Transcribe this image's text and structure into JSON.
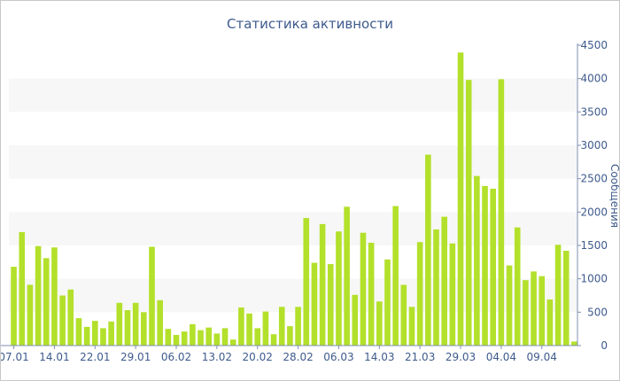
{
  "chart_data": {
    "type": "bar",
    "title": "Статистика активности",
    "ylabel": "Сообщения",
    "ylim": [
      0,
      4500
    ],
    "yticks": [
      0,
      500,
      1000,
      1500,
      2000,
      2500,
      3000,
      3500,
      4000,
      4500
    ],
    "y_axis_position": "right",
    "grid": "alternating horizontal bands",
    "bar_color": "#b3e02a",
    "xtick_labels": [
      "07.01",
      "14.01",
      "22.01",
      "29.01",
      "06.02",
      "13.02",
      "20.02",
      "28.02",
      "06.03",
      "14.03",
      "21.03",
      "29.03",
      "04.04",
      "09.04"
    ],
    "xtick_bar_index": [
      0,
      5,
      10,
      15,
      20,
      25,
      30,
      35,
      40,
      45,
      50,
      55,
      60,
      65
    ],
    "values": [
      1180,
      1700,
      910,
      1490,
      1310,
      1470,
      750,
      840,
      410,
      280,
      370,
      260,
      360,
      640,
      530,
      640,
      500,
      1480,
      680,
      250,
      160,
      210,
      320,
      230,
      270,
      180,
      260,
      90,
      570,
      480,
      260,
      510,
      170,
      580,
      290,
      580,
      1910,
      1240,
      1820,
      1220,
      1710,
      2080,
      760,
      1690,
      1540,
      660,
      1290,
      2090,
      910,
      580,
      1550,
      2860,
      1740,
      1930,
      1530,
      4390,
      3980,
      2540,
      2390,
      2350,
      3990,
      1200,
      1770,
      980,
      1110,
      1040,
      690,
      1510,
      1420,
      60
    ]
  }
}
